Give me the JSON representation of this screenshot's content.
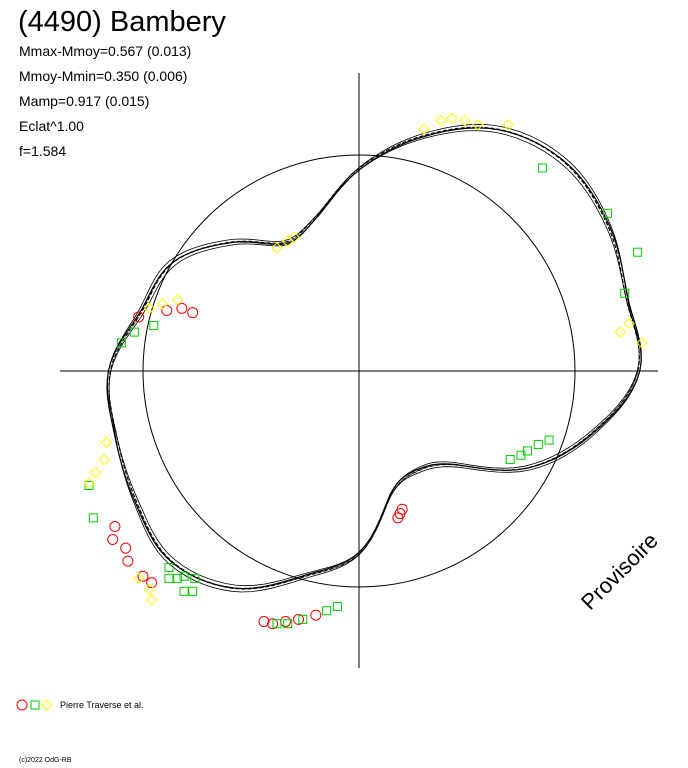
{
  "title": "(4490) Bambery",
  "stats": [
    "Mmax-Mmoy=0.567 (0.013)",
    "Mmoy-Mmin=0.350 (0.006)",
    "Mamp=0.917 (0.015)",
    "Eclat^1.00",
    "f=1.584"
  ],
  "legend": {
    "text": "Pierre Traverse et al."
  },
  "watermark": "Provisoire",
  "copyright": "(c)2022 OdG-RB",
  "colors": {
    "circle_markers": "#ff0000",
    "square_markers": "#00cc00",
    "diamond_markers": "#ffff00",
    "curve": "#000000"
  },
  "chart_data": {
    "type": "scatter",
    "title": "(4490) Bambery",
    "xlabel": "",
    "ylabel": "",
    "grid": false,
    "legend_position": "bottom-left",
    "axes": "polar lightcurve, crosshair at origin, reference circle radius 1.0",
    "xlim": [
      -1.38,
      1.38
    ],
    "ylim": [
      -1.38,
      1.38
    ],
    "reference_circle_radius": 1.0,
    "model_curve_polar": {
      "angle_deg": [
        0,
        15,
        30,
        45,
        60,
        75,
        90,
        105,
        120,
        135,
        150,
        165,
        180,
        195,
        210,
        225,
        240,
        255,
        270,
        285,
        300,
        315,
        330,
        345,
        360
      ],
      "radius": [
        1.3,
        1.29,
        1.34,
        1.36,
        1.29,
        1.12,
        0.93,
        0.74,
        0.68,
        0.84,
        1.0,
        1.05,
        1.16,
        1.17,
        1.2,
        1.24,
        1.16,
        0.98,
        0.84,
        0.58,
        0.53,
        0.61,
        0.9,
        1.12,
        1.3
      ]
    },
    "series": [
      {
        "name": "circle",
        "marker": "circle",
        "color": "#ff0000",
        "points": [
          [
            -1.02,
            0.25
          ],
          [
            -0.89,
            0.28
          ],
          [
            -0.82,
            0.29
          ],
          [
            -0.77,
            0.27
          ],
          [
            -1.13,
            -0.72
          ],
          [
            -1.14,
            -0.78
          ],
          [
            -1.08,
            -0.82
          ],
          [
            -1.07,
            -0.88
          ],
          [
            -1.0,
            -0.95
          ],
          [
            -0.96,
            -0.98
          ],
          [
            -0.44,
            -1.16
          ],
          [
            -0.4,
            -1.17
          ],
          [
            -0.34,
            -1.16
          ],
          [
            -0.28,
            -1.15
          ],
          [
            -0.2,
            -1.13
          ],
          [
            0.18,
            -0.68
          ],
          [
            0.19,
            -0.66
          ],
          [
            0.2,
            -0.64
          ]
        ]
      },
      {
        "name": "square",
        "marker": "square",
        "color": "#00cc00",
        "points": [
          [
            -1.1,
            0.13
          ],
          [
            -1.04,
            0.18
          ],
          [
            -0.95,
            0.21
          ],
          [
            -1.23,
            -0.68
          ],
          [
            -1.25,
            -0.53
          ],
          [
            -0.88,
            -0.91
          ],
          [
            -0.88,
            -0.96
          ],
          [
            -0.84,
            -0.96
          ],
          [
            -0.81,
            -0.95
          ],
          [
            -0.76,
            -0.96
          ],
          [
            -0.81,
            -1.02
          ],
          [
            -0.77,
            -1.02
          ],
          [
            -0.38,
            -1.17
          ],
          [
            -0.33,
            -1.17
          ],
          [
            -0.26,
            -1.15
          ],
          [
            -0.15,
            -1.11
          ],
          [
            -0.1,
            -1.09
          ],
          [
            0.7,
            -0.41
          ],
          [
            0.75,
            -0.39
          ],
          [
            0.78,
            -0.37
          ],
          [
            0.83,
            -0.34
          ],
          [
            0.88,
            -0.32
          ],
          [
            0.85,
            0.94
          ],
          [
            1.15,
            0.73
          ],
          [
            1.29,
            0.55
          ],
          [
            1.23,
            0.36
          ]
        ]
      },
      {
        "name": "diamond",
        "marker": "diamond",
        "color": "#ffff00",
        "points": [
          [
            -0.38,
            0.57
          ],
          [
            -0.33,
            0.6
          ],
          [
            -0.3,
            0.62
          ],
          [
            -0.97,
            0.29
          ],
          [
            -0.91,
            0.31
          ],
          [
            -0.84,
            0.33
          ],
          [
            -1.17,
            -0.33
          ],
          [
            -1.18,
            -0.41
          ],
          [
            -1.25,
            -0.52
          ],
          [
            -1.22,
            -0.47
          ],
          [
            -1.02,
            -0.96
          ],
          [
            -0.97,
            -1.01
          ],
          [
            -0.96,
            -1.06
          ],
          [
            0.3,
            1.12
          ],
          [
            0.38,
            1.16
          ],
          [
            0.43,
            1.17
          ],
          [
            0.49,
            1.16
          ],
          [
            0.55,
            1.14
          ],
          [
            0.69,
            1.14
          ],
          [
            1.21,
            0.18
          ],
          [
            1.25,
            0.22
          ],
          [
            1.31,
            0.13
          ]
        ]
      }
    ]
  }
}
